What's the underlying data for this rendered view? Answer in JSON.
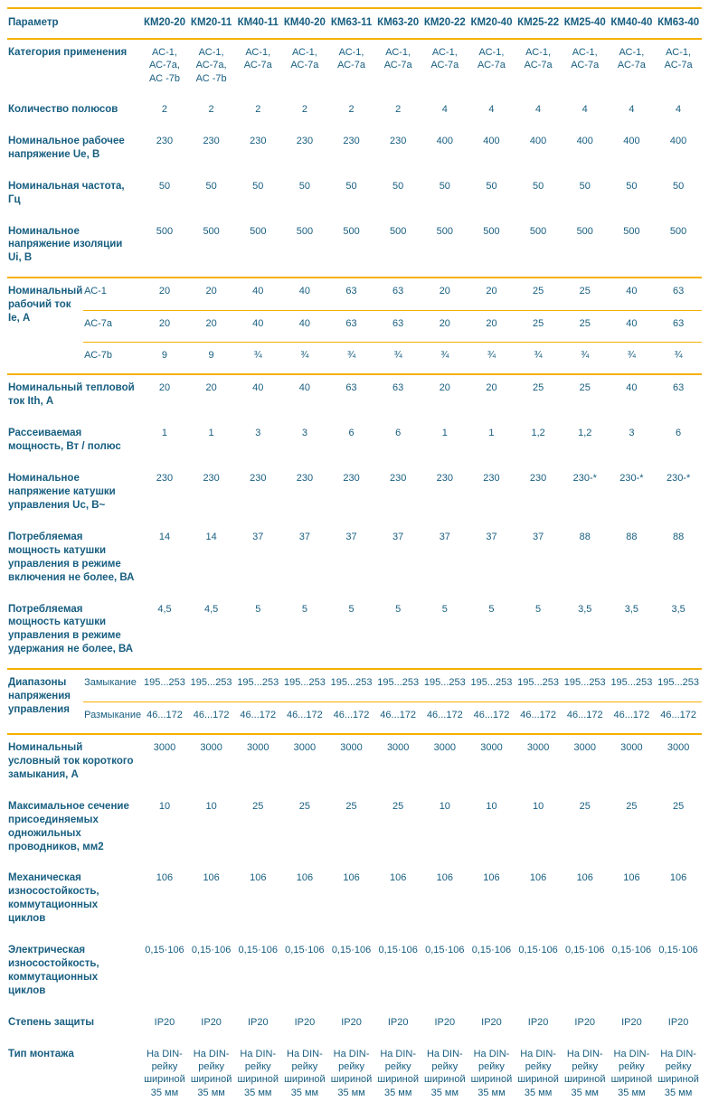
{
  "page": {
    "background": "#ffffff",
    "text_color": "#175e80",
    "rule_color": "#f5b101"
  },
  "table": {
    "param_header": "Параметр",
    "models": [
      "КМ20-20",
      "КМ20-11",
      "КМ40-11",
      "КМ40-20",
      "КМ63-11",
      "КМ63-20",
      "КМ20-22",
      "КМ20-40",
      "КМ25-22",
      "КМ25-40",
      "КМ40-40",
      "КМ63-40"
    ],
    "rows": [
      {
        "label": "Категория применения",
        "sub": null,
        "span": 1,
        "rule": "none",
        "values": [
          "АС-1, АС-7а, АС -7b",
          "АС-1, АС-7а, АС -7b",
          "АС-1, АС-7а",
          "АС-1, АС-7а",
          "АС-1, АС-7а",
          "АС-1, АС-7а",
          "АС-1, АС-7а",
          "АС-1, АС-7а",
          "АС-1, АС-7а",
          "АС-1, АС-7а",
          "АС-1, АС-7а",
          "АС-1, АС-7а"
        ]
      },
      {
        "label": "Количество полюсов",
        "sub": null,
        "span": 1,
        "rule": "none",
        "values": [
          "2",
          "2",
          "2",
          "2",
          "2",
          "2",
          "4",
          "4",
          "4",
          "4",
          "4",
          "4"
        ]
      },
      {
        "label": "Номинальное рабочее напряжение Ue, В",
        "sub": null,
        "span": 1,
        "rule": "none",
        "values": [
          "230",
          "230",
          "230",
          "230",
          "230",
          "230",
          "400",
          "400",
          "400",
          "400",
          "400",
          "400"
        ]
      },
      {
        "label": "Номинальная частота, Гц",
        "sub": null,
        "span": 1,
        "rule": "none",
        "values": [
          "50",
          "50",
          "50",
          "50",
          "50",
          "50",
          "50",
          "50",
          "50",
          "50",
          "50",
          "50"
        ]
      },
      {
        "label": "Номинальное напряжение изоляции Ui, В",
        "sub": null,
        "span": 1,
        "rule": "none",
        "values": [
          "500",
          "500",
          "500",
          "500",
          "500",
          "500",
          "500",
          "500",
          "500",
          "500",
          "500",
          "500"
        ]
      },
      {
        "label": "Номинальный рабочий ток Ie, А",
        "sub": "АС-1",
        "span": 3,
        "rule": "full",
        "values": [
          "20",
          "20",
          "40",
          "40",
          "63",
          "63",
          "20",
          "20",
          "25",
          "25",
          "40",
          "63"
        ]
      },
      {
        "label": null,
        "sub": "АС-7а",
        "span": 1,
        "rule": "sub",
        "values": [
          "20",
          "20",
          "40",
          "40",
          "63",
          "63",
          "20",
          "20",
          "25",
          "25",
          "40",
          "63"
        ]
      },
      {
        "label": null,
        "sub": "АС-7b",
        "span": 1,
        "rule": "sub",
        "values": [
          "9",
          "9",
          "¾",
          "¾",
          "¾",
          "¾",
          "¾",
          "¾",
          "¾",
          "¾",
          "¾",
          "¾"
        ]
      },
      {
        "label": "Номинальный тепловой ток Ith, А",
        "sub": null,
        "span": 1,
        "rule": "full",
        "values": [
          "20",
          "20",
          "40",
          "40",
          "63",
          "63",
          "20",
          "20",
          "25",
          "25",
          "40",
          "63"
        ]
      },
      {
        "label": "Рассеиваемая мощность, Вт / полюс",
        "sub": null,
        "span": 1,
        "rule": "none",
        "values": [
          "1",
          "1",
          "3",
          "3",
          "6",
          "6",
          "1",
          "1",
          "1,2",
          "1,2",
          "3",
          "6"
        ]
      },
      {
        "label": "Номинальное напряжение катушки управления Uc, В~",
        "sub": null,
        "span": 1,
        "rule": "none",
        "values": [
          "230",
          "230",
          "230",
          "230",
          "230",
          "230",
          "230",
          "230",
          "230",
          "230-*",
          "230-*",
          "230-*"
        ]
      },
      {
        "label": "Потребляемая мощность катушки управления в режиме включения не более, ВА",
        "sub": null,
        "span": 1,
        "rule": "none",
        "values": [
          "14",
          "14",
          "37",
          "37",
          "37",
          "37",
          "37",
          "37",
          "37",
          "88",
          "88",
          "88"
        ]
      },
      {
        "label": "Потребляемая мощность катушки управления в режиме удержания не более, ВА",
        "sub": null,
        "span": 1,
        "rule": "none",
        "values": [
          "4,5",
          "4,5",
          "5",
          "5",
          "5",
          "5",
          "5",
          "5",
          "5",
          "3,5",
          "3,5",
          "3,5"
        ]
      },
      {
        "label": "Диапазоны напряжения управления",
        "sub": "Замыкание",
        "span": 2,
        "rule": "full",
        "values": [
          "195...253",
          "195...253",
          "195...253",
          "195...253",
          "195...253",
          "195...253",
          "195...253",
          "195...253",
          "195...253",
          "195...253",
          "195...253",
          "195...253"
        ]
      },
      {
        "label": null,
        "sub": "Размыкание",
        "span": 1,
        "rule": "sub",
        "values": [
          "46...172",
          "46...172",
          "46...172",
          "46...172",
          "46...172",
          "46...172",
          "46...172",
          "46...172",
          "46...172",
          "46...172",
          "46...172",
          "46...172"
        ]
      },
      {
        "label": "Номинальный условный ток короткого замыкания, А",
        "sub": null,
        "span": 1,
        "rule": "full",
        "values": [
          "3000",
          "3000",
          "3000",
          "3000",
          "3000",
          "3000",
          "3000",
          "3000",
          "3000",
          "3000",
          "3000",
          "3000"
        ]
      },
      {
        "label": "Максимальное сечение присоединяемых одножильных проводников, мм2",
        "sub": null,
        "span": 1,
        "rule": "none",
        "values": [
          "10",
          "10",
          "25",
          "25",
          "25",
          "25",
          "10",
          "10",
          "10",
          "25",
          "25",
          "25"
        ]
      },
      {
        "label": "Механическая износостойкость, коммутационных циклов",
        "sub": null,
        "span": 1,
        "rule": "none",
        "values": [
          "106",
          "106",
          "106",
          "106",
          "106",
          "106",
          "106",
          "106",
          "106",
          "106",
          "106",
          "106"
        ]
      },
      {
        "label": "Электрическая износостойкость, коммутационных циклов",
        "sub": null,
        "span": 1,
        "rule": "none",
        "values": [
          "0,15·106",
          "0,15·106",
          "0,15·106",
          "0,15·106",
          "0,15·106",
          "0,15·106",
          "0,15·106",
          "0,15·106",
          "0,15·106",
          "0,15·106",
          "0,15·106",
          "0,15·106"
        ]
      },
      {
        "label": "Степень защиты",
        "sub": null,
        "span": 1,
        "rule": "none",
        "values": [
          "IP20",
          "IP20",
          "IP20",
          "IP20",
          "IP20",
          "IP20",
          "IP20",
          "IP20",
          "IP20",
          "IP20",
          "IP20",
          "IP20"
        ]
      },
      {
        "label": "Тип монтажа",
        "sub": null,
        "span": 1,
        "rule": "none",
        "values": [
          "На DIN-рейку шириной 35 мм",
          "На DIN-рейку шириной 35 мм",
          "На DIN-рейку шириной 35 мм",
          "На DIN-рейку шириной 35 мм",
          "На DIN-рейку шириной 35 мм",
          "На DIN-рейку шириной 35 мм",
          "На DIN-рейку шириной 35 мм",
          "На DIN-рейку шириной 35 мм",
          "На DIN-рейку шириной 35 мм",
          "На DIN-рейку шириной 35 мм",
          "На DIN-рейку шириной 35 мм",
          "На DIN-рейку шириной 35 мм"
        ]
      }
    ]
  }
}
